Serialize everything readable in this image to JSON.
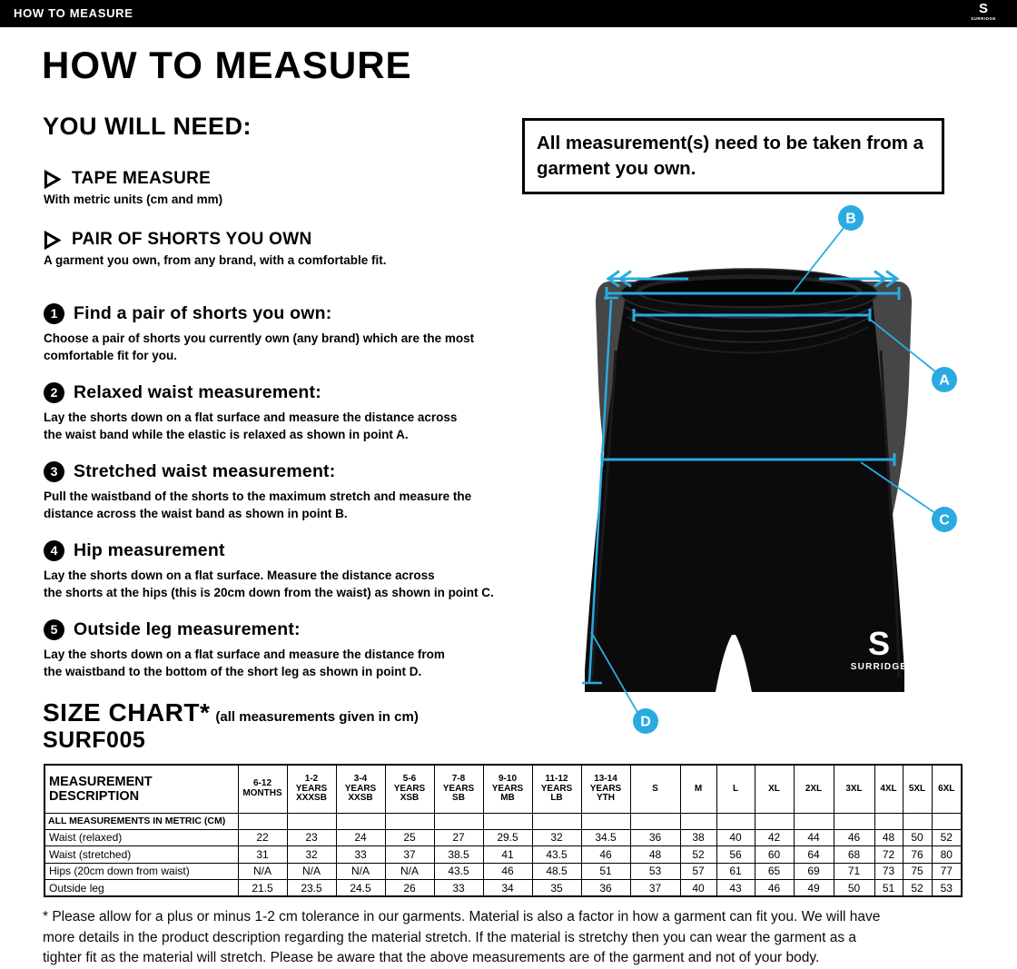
{
  "topbar": {
    "title": "HOW TO MEASURE",
    "brand": {
      "initial": "S",
      "name": "SURRIDGE"
    }
  },
  "page_title": "HOW TO MEASURE",
  "you_will_need": {
    "heading": "YOU WILL NEED:",
    "items": [
      {
        "title": "TAPE MEASURE",
        "desc": "With metric units (cm and mm)"
      },
      {
        "title": "PAIR OF SHORTS YOU OWN",
        "desc": "A garment you own, from any brand, with a comfortable fit."
      }
    ]
  },
  "note_box": "All measurement(s) need to be taken from a garment you own.",
  "steps": [
    {
      "num": "1",
      "title": "Find a pair of shorts you own:",
      "body": "Choose a pair of shorts you currently own (any brand) which are the most\ncomfortable fit for you."
    },
    {
      "num": "2",
      "title": "Relaxed waist measurement:",
      "body": "Lay the shorts down on a flat surface and measure the distance across\nthe waist band while the elastic is relaxed as shown in point A."
    },
    {
      "num": "3",
      "title": "Stretched waist measurement:",
      "body": "Pull the waistband of the shorts to the maximum stretch and measure the\ndistance across the waist band as shown in point B."
    },
    {
      "num": "4",
      "title": "Hip measurement",
      "body": "Lay the shorts down on a flat surface. Measure the distance across\nthe shorts at the hips (this is 20cm down from the waist)  as shown in point C."
    },
    {
      "num": "5",
      "title": "Outside leg measurement:",
      "body": "Lay the shorts down on a flat surface and measure the distance from\nthe waistband to the bottom of the short leg as shown in point D."
    }
  ],
  "diagram": {
    "accent": "#29abe2",
    "labels": [
      "A",
      "B",
      "C",
      "D"
    ],
    "shorts_logo": {
      "initial": "S",
      "name": "SURRIDGE"
    }
  },
  "size_chart": {
    "heading": "SIZE CHART*",
    "heading_note": "(all measurements given in cm)",
    "product_code": "SURF005",
    "table": {
      "desc_header": "MEASUREMENT DESCRIPTION",
      "metric_row_label": "ALL MEASUREMENTS IN METRIC (CM)",
      "columns": [
        {
          "lines": [
            "6-12",
            "MONTHS"
          ]
        },
        {
          "lines": [
            "1-2",
            "YEARS",
            "XXXSB"
          ]
        },
        {
          "lines": [
            "3-4",
            "YEARS",
            "XXSB"
          ]
        },
        {
          "lines": [
            "5-6",
            "YEARS",
            "XSB"
          ]
        },
        {
          "lines": [
            "7-8",
            "YEARS",
            "SB"
          ]
        },
        {
          "lines": [
            "9-10",
            "YEARS",
            "MB"
          ]
        },
        {
          "lines": [
            "11-12",
            "YEARS",
            "LB"
          ]
        },
        {
          "lines": [
            "13-14",
            "YEARS",
            "YTH"
          ]
        },
        {
          "lines": [
            "S"
          ]
        },
        {
          "lines": [
            "M"
          ]
        },
        {
          "lines": [
            "L"
          ]
        },
        {
          "lines": [
            "XL"
          ]
        },
        {
          "lines": [
            "2XL"
          ]
        },
        {
          "lines": [
            "3XL"
          ]
        },
        {
          "lines": [
            "4XL"
          ]
        },
        {
          "lines": [
            "5XL"
          ]
        },
        {
          "lines": [
            "6XL"
          ]
        }
      ],
      "rows": [
        {
          "label": "Waist (relaxed)",
          "values": [
            "22",
            "23",
            "24",
            "25",
            "27",
            "29.5",
            "32",
            "34.5",
            "36",
            "38",
            "40",
            "42",
            "44",
            "46",
            "48",
            "50",
            "52"
          ]
        },
        {
          "label": "Waist (stretched)",
          "values": [
            "31",
            "32",
            "33",
            "37",
            "38.5",
            "41",
            "43.5",
            "46",
            "48",
            "52",
            "56",
            "60",
            "64",
            "68",
            "72",
            "76",
            "80"
          ]
        },
        {
          "label": "Hips (20cm down from waist)",
          "values": [
            "N/A",
            "N/A",
            "N/A",
            "N/A",
            "43.5",
            "46",
            "48.5",
            "51",
            "53",
            "57",
            "61",
            "65",
            "69",
            "71",
            "73",
            "75",
            "77"
          ]
        },
        {
          "label": "Outside leg",
          "values": [
            "21.5",
            "23.5",
            "24.5",
            "26",
            "33",
            "34",
            "35",
            "36",
            "37",
            "40",
            "43",
            "46",
            "49",
            "50",
            "51",
            "52",
            "53"
          ]
        }
      ]
    }
  },
  "footnote": "* Please allow for a plus or minus 1-2 cm tolerance in our garments. Material is also a factor in how a garment can fit you. We will have\nmore details in the product description regarding the material stretch.  If the material is stretchy then you can wear the garment as a\ntighter fit as the material will stretch.  Please be aware that the above measurements are of the garment and not of your body."
}
